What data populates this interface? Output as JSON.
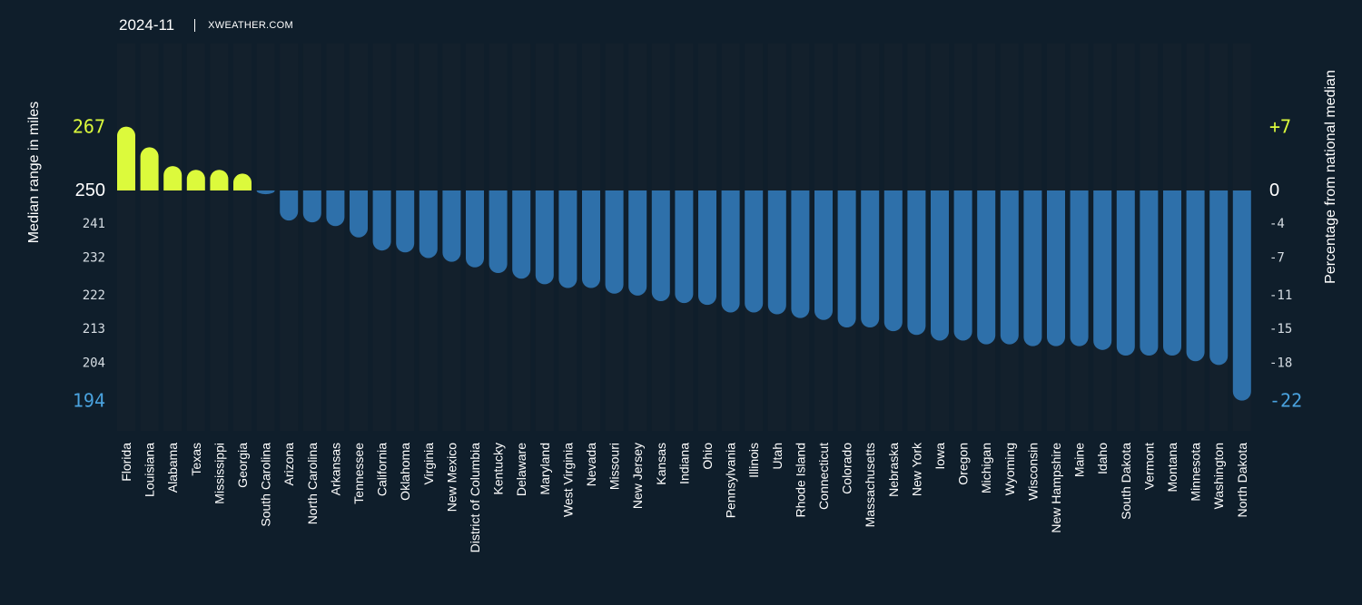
{
  "header": {
    "date": "2024-11",
    "source": "XWEATHER.COM"
  },
  "colors": {
    "background": "#0f1e2b",
    "column": "#13202c",
    "positive": "#dcfa3c",
    "negative": "#2e70aa",
    "max_label": "#dcfa3c",
    "min_label": "#4aa3df"
  },
  "chart_data": {
    "type": "bar",
    "title": "",
    "ylabel_left": "Median range in miles",
    "ylabel_right": "Percentage from national median",
    "baseline": 250,
    "ylim": [
      194,
      267
    ],
    "left_ticks": [
      {
        "label": "267",
        "value": 267,
        "style": "max"
      },
      {
        "label": "250",
        "value": 250,
        "style": "base"
      },
      {
        "label": "241",
        "value": 241,
        "style": "normal"
      },
      {
        "label": "232",
        "value": 232,
        "style": "normal"
      },
      {
        "label": "222",
        "value": 222,
        "style": "normal"
      },
      {
        "label": "213",
        "value": 213,
        "style": "normal"
      },
      {
        "label": "204",
        "value": 204,
        "style": "normal"
      },
      {
        "label": "194",
        "value": 194,
        "style": "min"
      }
    ],
    "right_ticks": [
      {
        "label": "+7",
        "value": 267,
        "style": "max"
      },
      {
        "label": "0",
        "value": 250,
        "style": "base"
      },
      {
        "label": "-4",
        "value": 241,
        "style": "normal"
      },
      {
        "label": "-7",
        "value": 232,
        "style": "normal"
      },
      {
        "label": "-11",
        "value": 222,
        "style": "normal"
      },
      {
        "label": "-15",
        "value": 213,
        "style": "normal"
      },
      {
        "label": "-18",
        "value": 204,
        "style": "normal"
      },
      {
        "label": "-22",
        "value": 194,
        "style": "min"
      }
    ],
    "categories": [
      "Florida",
      "Louisiana",
      "Alabama",
      "Texas",
      "Mississippi",
      "Georgia",
      "South Carolina",
      "Arizona",
      "North Carolina",
      "Arkansas",
      "Tennessee",
      "California",
      "Oklahoma",
      "Virginia",
      "New Mexico",
      "District of Columbia",
      "Kentucky",
      "Delaware",
      "Maryland",
      "West Virginia",
      "Nevada",
      "Missouri",
      "New Jersey",
      "Kansas",
      "Indiana",
      "Ohio",
      "Pennsylvania",
      "Illinois",
      "Utah",
      "Rhode Island",
      "Connecticut",
      "Colorado",
      "Massachusetts",
      "Nebraska",
      "New York",
      "Iowa",
      "Oregon",
      "Michigan",
      "Wyoming",
      "Wisconsin",
      "New Hampshire",
      "Maine",
      "Idaho",
      "South Dakota",
      "Vermont",
      "Montana",
      "Minnesota",
      "Washington",
      "North Dakota"
    ],
    "values": [
      267,
      261.5,
      256.5,
      255.5,
      255.5,
      254.5,
      249,
      242,
      241.5,
      240.5,
      237.5,
      234,
      233.5,
      232,
      231,
      229.5,
      228,
      226.5,
      225,
      224,
      224,
      222.5,
      222,
      220.5,
      220,
      219.5,
      217.5,
      217.5,
      217,
      216,
      215.5,
      213.5,
      213.5,
      212.5,
      211.5,
      210,
      210,
      209,
      209,
      208.5,
      208.5,
      208.5,
      207.5,
      206,
      206,
      206,
      204.5,
      203.5,
      194
    ]
  }
}
